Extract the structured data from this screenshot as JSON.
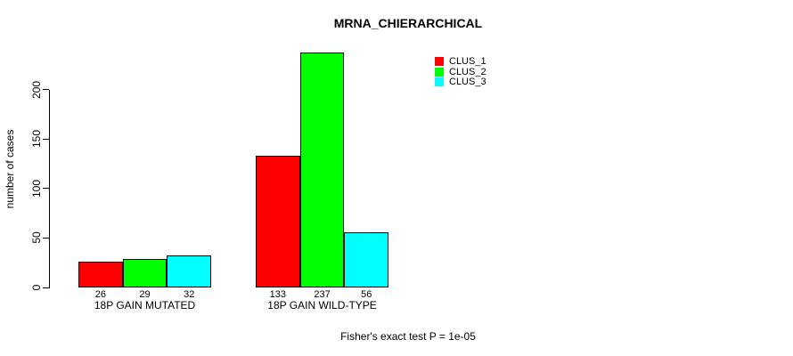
{
  "chart_data": {
    "type": "bar",
    "title": "MRNA_CHIERARCHICAL",
    "ylabel": "number of cases",
    "xlabel": "",
    "categories": [
      "18P GAIN MUTATED",
      "18P GAIN WILD-TYPE"
    ],
    "series": [
      {
        "name": "CLUS_1",
        "color": "#ff0000",
        "values": [
          26,
          133
        ]
      },
      {
        "name": "CLUS_2",
        "color": "#00ff00",
        "values": [
          29,
          237
        ]
      },
      {
        "name": "CLUS_3",
        "color": "#00ffff",
        "values": [
          32,
          56
        ]
      }
    ],
    "bar_value_labels": [
      [
        "26",
        "29",
        "32"
      ],
      [
        "133",
        "237",
        "56"
      ]
    ],
    "yticks": [
      0,
      50,
      100,
      150,
      200
    ],
    "ylim": [
      0,
      240
    ],
    "grid": false,
    "legend_position": "top-right",
    "annotation": "Fisher's exact test P = 1e-05"
  }
}
